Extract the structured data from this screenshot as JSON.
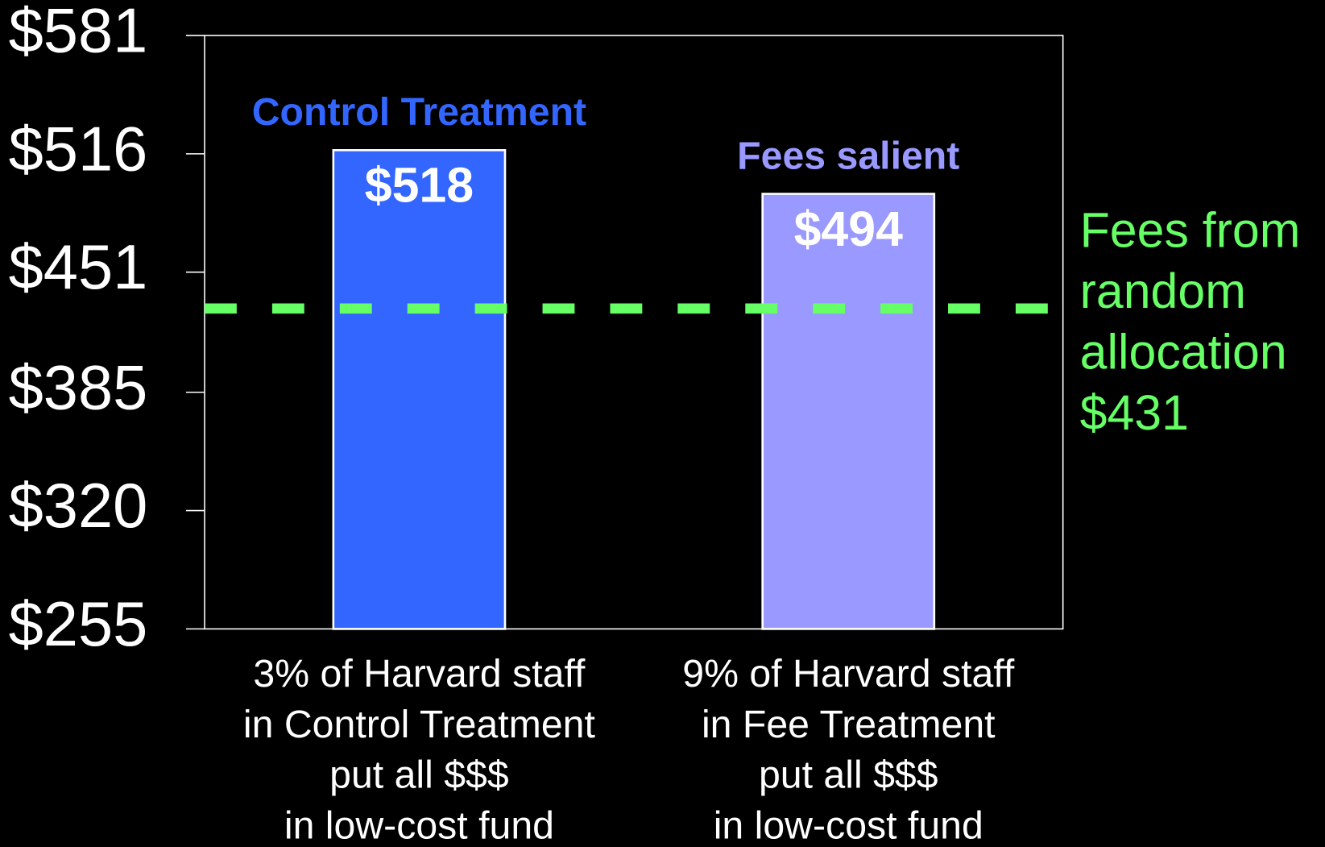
{
  "chart_data": {
    "type": "bar",
    "categories": [
      [
        "3% of Harvard staff",
        "in Control Treatment",
        "put all $$$",
        "in low-cost fund"
      ],
      [
        "9% of Harvard staff",
        "in Fee Treatment",
        "put all $$$",
        "in low-cost fund"
      ]
    ],
    "values": [
      518,
      494
    ],
    "value_labels": [
      "$518",
      "$494"
    ],
    "bar_labels": [
      "Control Treatment",
      "Fees salient"
    ],
    "colors": [
      "#3366ff",
      "#9999ff"
    ],
    "ylim": [
      255,
      581
    ],
    "yticks": [
      {
        "value": 255,
        "label": "$255"
      },
      {
        "value": 320,
        "label": "$320"
      },
      {
        "value": 385,
        "label": "$385"
      },
      {
        "value": 451,
        "label": "$451"
      },
      {
        "value": 516,
        "label": "$516"
      },
      {
        "value": 581,
        "label": "$581"
      }
    ],
    "reference_line": {
      "value": 431,
      "color": "#66ff66",
      "label_lines": [
        "Fees from",
        "random",
        "allocation",
        "$431"
      ]
    }
  }
}
